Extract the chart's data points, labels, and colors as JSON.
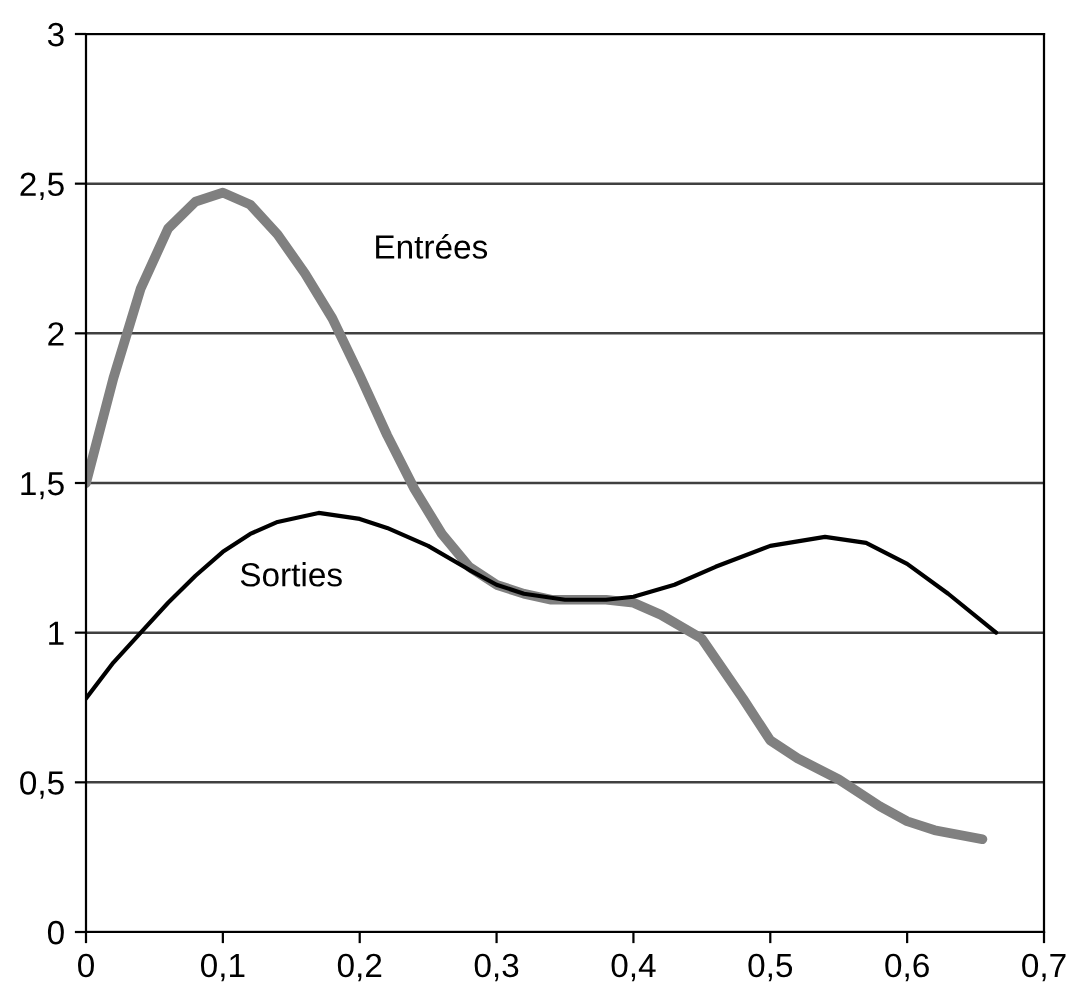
{
  "chart_data": {
    "type": "line",
    "xlim": [
      0,
      0.7
    ],
    "ylim": [
      0,
      3
    ],
    "xticks": [
      {
        "value": 0,
        "label": "0"
      },
      {
        "value": 0.1,
        "label": "0,1"
      },
      {
        "value": 0.2,
        "label": "0,2"
      },
      {
        "value": 0.3,
        "label": "0,3"
      },
      {
        "value": 0.4,
        "label": "0,4"
      },
      {
        "value": 0.5,
        "label": "0,5"
      },
      {
        "value": 0.6,
        "label": "0,6"
      },
      {
        "value": 0.7,
        "label": "0,7"
      }
    ],
    "yticks": [
      {
        "value": 0,
        "label": "0"
      },
      {
        "value": 0.5,
        "label": "0,5"
      },
      {
        "value": 1,
        "label": "1"
      },
      {
        "value": 1.5,
        "label": "1,5"
      },
      {
        "value": 2,
        "label": "2"
      },
      {
        "value": 2.5,
        "label": "2,5"
      },
      {
        "value": 3,
        "label": "3"
      }
    ],
    "grid": "y",
    "legend": false,
    "marker": "none",
    "line_style": "solid",
    "series": [
      {
        "name": "Entrées",
        "color": "#808080",
        "x": [
          0,
          0.02,
          0.04,
          0.06,
          0.08,
          0.1,
          0.12,
          0.14,
          0.16,
          0.18,
          0.2,
          0.22,
          0.24,
          0.26,
          0.28,
          0.3,
          0.32,
          0.34,
          0.36,
          0.38,
          0.4,
          0.42,
          0.45,
          0.48,
          0.5,
          0.52,
          0.55,
          0.58,
          0.6,
          0.62,
          0.655
        ],
        "values": [
          1.5,
          1.85,
          2.15,
          2.35,
          2.44,
          2.47,
          2.43,
          2.33,
          2.2,
          2.05,
          1.86,
          1.66,
          1.48,
          1.33,
          1.22,
          1.16,
          1.13,
          1.11,
          1.11,
          1.11,
          1.1,
          1.06,
          0.98,
          0.78,
          0.64,
          0.58,
          0.51,
          0.42,
          0.37,
          0.34,
          0.31
        ]
      },
      {
        "name": "Sorties",
        "color": "#000000",
        "x": [
          0,
          0.02,
          0.04,
          0.06,
          0.08,
          0.1,
          0.12,
          0.14,
          0.17,
          0.2,
          0.22,
          0.25,
          0.28,
          0.3,
          0.32,
          0.35,
          0.38,
          0.4,
          0.43,
          0.46,
          0.5,
          0.54,
          0.57,
          0.6,
          0.63,
          0.665
        ],
        "values": [
          0.78,
          0.9,
          1.0,
          1.1,
          1.19,
          1.27,
          1.33,
          1.37,
          1.4,
          1.38,
          1.35,
          1.29,
          1.21,
          1.16,
          1.13,
          1.11,
          1.11,
          1.12,
          1.16,
          1.22,
          1.29,
          1.32,
          1.3,
          1.23,
          1.13,
          1.0
        ]
      }
    ]
  }
}
